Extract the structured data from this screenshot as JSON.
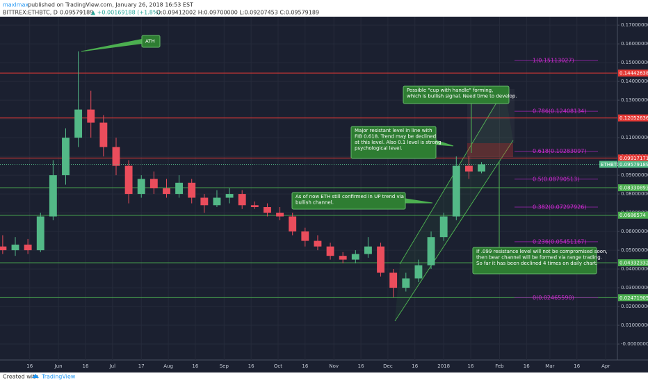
{
  "header": {
    "author": "maxlmax",
    "published": "published on TradingView.com, January 26, 2018 16:53 EST",
    "symbol": "BITTREX:ETHBTC, D",
    "price": "0.09579189",
    "change": "▲ +0.00169188 (+1.8%)",
    "ohlc": "O:0.09412002 H:0.09700000 L:0.09207453 C:0.09579189"
  },
  "footer": {
    "created": "Created with",
    "brand": "TradingView"
  },
  "chart_data": {
    "type": "candlestick",
    "ticker_label": "ETHBTC",
    "current_price": {
      "value": 0.09579189,
      "label": "0.09579189"
    },
    "up_color": "#53b987",
    "down_color": "#eb4d5c",
    "x": [
      0,
      7,
      14,
      21,
      28,
      35,
      42,
      49,
      56,
      63,
      70,
      77,
      84,
      91,
      98,
      105,
      112,
      119,
      126,
      133,
      140,
      147,
      154,
      161,
      168,
      175,
      182,
      189,
      196,
      203,
      210,
      217,
      224,
      231,
      238,
      245,
      252,
      259,
      266
    ],
    "open": [
      0.052,
      0.05,
      0.053,
      0.05,
      0.068,
      0.09,
      0.11,
      0.125,
      0.118,
      0.105,
      0.095,
      0.08,
      0.088,
      0.083,
      0.08,
      0.086,
      0.078,
      0.074,
      0.078,
      0.08,
      0.074,
      0.073,
      0.07,
      0.068,
      0.06,
      0.055,
      0.052,
      0.047,
      0.045,
      0.048,
      0.052,
      0.038,
      0.03,
      0.035,
      0.042,
      0.057,
      0.068,
      0.095,
      0.092
    ],
    "high": [
      0.058,
      0.057,
      0.056,
      0.07,
      0.098,
      0.115,
      0.156,
      0.135,
      0.122,
      0.11,
      0.098,
      0.09,
      0.092,
      0.088,
      0.09,
      0.088,
      0.08,
      0.082,
      0.083,
      0.082,
      0.076,
      0.075,
      0.073,
      0.07,
      0.062,
      0.058,
      0.054,
      0.049,
      0.05,
      0.057,
      0.054,
      0.04,
      0.038,
      0.045,
      0.06,
      0.07,
      0.1,
      0.1,
      0.097
    ],
    "low": [
      0.048,
      0.047,
      0.048,
      0.049,
      0.066,
      0.085,
      0.105,
      0.11,
      0.1,
      0.09,
      0.075,
      0.078,
      0.08,
      0.078,
      0.078,
      0.075,
      0.07,
      0.073,
      0.075,
      0.072,
      0.072,
      0.068,
      0.066,
      0.058,
      0.052,
      0.05,
      0.045,
      0.043,
      0.043,
      0.046,
      0.036,
      0.025,
      0.028,
      0.033,
      0.04,
      0.055,
      0.066,
      0.088,
      0.091
    ],
    "close": [
      0.05,
      0.053,
      0.05,
      0.068,
      0.09,
      0.11,
      0.125,
      0.118,
      0.105,
      0.095,
      0.08,
      0.088,
      0.083,
      0.08,
      0.086,
      0.078,
      0.074,
      0.078,
      0.08,
      0.074,
      0.073,
      0.07,
      0.068,
      0.06,
      0.055,
      0.052,
      0.047,
      0.045,
      0.048,
      0.052,
      0.038,
      0.03,
      0.035,
      0.042,
      0.057,
      0.068,
      0.095,
      0.092,
      0.0958
    ],
    "xlim": [
      -1.5,
      341.5
    ],
    "xticks": [
      {
        "value": 15,
        "label": "16"
      },
      {
        "value": 31,
        "label": "Jun"
      },
      {
        "value": 46,
        "label": "16"
      },
      {
        "value": 61,
        "label": "Jul"
      },
      {
        "value": 77,
        "label": "17"
      },
      {
        "value": 92,
        "label": "Aug"
      },
      {
        "value": 107,
        "label": "16"
      },
      {
        "value": 123,
        "label": "Sep"
      },
      {
        "value": 138,
        "label": "16"
      },
      {
        "value": 153,
        "label": "Oct"
      },
      {
        "value": 168,
        "label": "16"
      },
      {
        "value": 184,
        "label": "Nov"
      },
      {
        "value": 199,
        "label": "16"
      },
      {
        "value": 214,
        "label": "Dec"
      },
      {
        "value": 229,
        "label": "16"
      },
      {
        "value": 245,
        "label": "2018"
      },
      {
        "value": 260,
        "label": "16"
      },
      {
        "value": 276,
        "label": "Feb"
      },
      {
        "value": 291,
        "label": "16"
      },
      {
        "value": 304,
        "label": "Mar"
      },
      {
        "value": 319,
        "label": "16"
      },
      {
        "value": 335,
        "label": "Apr"
      }
    ],
    "ylim": [
      -0.0085,
      0.1745
    ],
    "yticks": [
      {
        "value": 0.17,
        "label": "0.17000000"
      },
      {
        "value": 0.16,
        "label": "0.16000000"
      },
      {
        "value": 0.15,
        "label": "0.15000000"
      },
      {
        "value": 0.14,
        "label": "0.14000000"
      },
      {
        "value": 0.13,
        "label": "0.13000000"
      },
      {
        "value": 0.12,
        "label": "0.12000000"
      },
      {
        "value": 0.11,
        "label": "0.11000000"
      },
      {
        "value": 0.1,
        "label": "0.10000000"
      },
      {
        "value": 0.09,
        "label": "0.09000000"
      },
      {
        "value": 0.08,
        "label": "0.08000000"
      },
      {
        "value": 0.07,
        "label": "0.07000000"
      },
      {
        "value": 0.06,
        "label": "0.06000000"
      },
      {
        "value": 0.05,
        "label": "0.05000000"
      },
      {
        "value": 0.04,
        "label": "0.04000000"
      },
      {
        "value": 0.03,
        "label": "0.03000000"
      },
      {
        "value": 0.02,
        "label": "0.02000000"
      },
      {
        "value": 0.01,
        "label": "0.01000000"
      },
      {
        "value": 0,
        "label": "-0.00000000"
      }
    ],
    "grid": true,
    "levels": [
      {
        "value": 0.14442638,
        "color": "#e53935"
      },
      {
        "value": 0.12052636,
        "color": "#e53935"
      },
      {
        "value": 0.09917171,
        "color": "#e53935"
      },
      {
        "value": 0.08330893,
        "color": "#4caf50"
      },
      {
        "value": 0.0686574,
        "color": "#4caf50"
      },
      {
        "value": 0.04332332,
        "color": "#4caf50"
      },
      {
        "value": 0.02471905,
        "color": "#4caf50"
      }
    ],
    "fib": [
      {
        "value": 0.15113027,
        "label": "1(0.15113027)"
      },
      {
        "value": 0.12408134,
        "label": "0.786(0.12408134)"
      },
      {
        "value": 0.10283097,
        "label": "0.618(0.10283097)"
      },
      {
        "value": 0.08790513,
        "label": "0.5(0.08790513)"
      },
      {
        "value": 0.07297926,
        "label": "0.382(0.07297926)"
      },
      {
        "value": 0.05451167,
        "label": "0.236(0.05451167)"
      },
      {
        "value": 0.0246559,
        "label": "0(0.02465590)"
      }
    ],
    "annotations": [
      {
        "lines": [
          "ATH"
        ]
      },
      {
        "lines": [
          "Possible \"cup with handle\" forming,",
          "which is bullish signal. Need time to develop."
        ]
      },
      {
        "lines": [
          "Major resistant level in line with",
          "FIB 0.618. Trend may be declined",
          "at this level. Also 0.1 level is strong",
          "psychological level."
        ]
      },
      {
        "lines": [
          "As of now ETH still confirmed in UP trend via",
          "bullish channel."
        ]
      },
      {
        "lines": [
          "If .099 resistance level will not be compromised soon,",
          "then bear channel will be formed via range trading.",
          "So far it has been declined 4 times on daily chart."
        ]
      }
    ]
  }
}
